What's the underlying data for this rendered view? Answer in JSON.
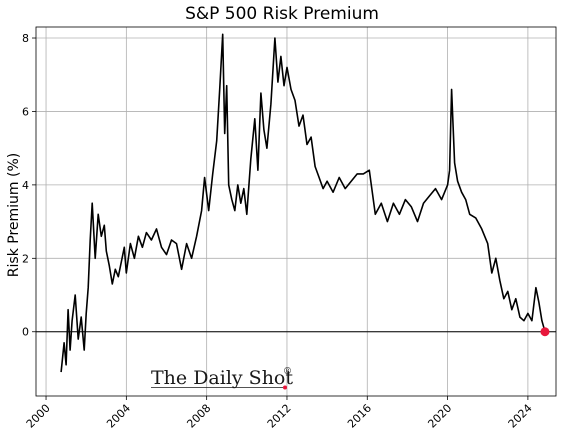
{
  "chart_data": {
    "type": "line",
    "title": "S&P 500 Risk Premium",
    "xlabel": "",
    "ylabel": "Risk Premium (%)",
    "xlim": [
      1999.5,
      2025.4
    ],
    "ylim": [
      -1.75,
      8.3
    ],
    "x_ticks": [
      2000,
      2004,
      2008,
      2012,
      2016,
      2020,
      2024
    ],
    "x_tick_labels": [
      "2000",
      "2004",
      "2008",
      "2012",
      "2016",
      "2020",
      "2024"
    ],
    "y_ticks": [
      0,
      2,
      4,
      6,
      8
    ],
    "y_tick_labels": [
      "0",
      "2",
      "4",
      "6",
      "8"
    ],
    "grid": true,
    "zero_line": 0,
    "line_color": "#000000",
    "marker_color": "#e8173c",
    "series": [
      {
        "x": [
          2000.75,
          2000.9,
          2001.0,
          2001.1,
          2001.2,
          2001.3,
          2001.45,
          2001.6,
          2001.75,
          2001.9,
          2002.0,
          2002.1,
          2002.2,
          2002.3,
          2002.45,
          2002.6,
          2002.75,
          2002.9,
          2003.0,
          2003.15,
          2003.3,
          2003.45,
          2003.6,
          2003.75,
          2003.9,
          2004.0,
          2004.2,
          2004.4,
          2004.6,
          2004.8,
          2005.0,
          2005.25,
          2005.5,
          2005.75,
          2006.0,
          2006.25,
          2006.5,
          2006.75,
          2007.0,
          2007.25,
          2007.5,
          2007.75,
          2007.9,
          2008.1,
          2008.3,
          2008.5,
          2008.65,
          2008.8,
          2008.9,
          2009.0,
          2009.1,
          2009.25,
          2009.4,
          2009.55,
          2009.7,
          2009.85,
          2010.0,
          2010.2,
          2010.4,
          2010.55,
          2010.7,
          2010.85,
          2011.0,
          2011.2,
          2011.4,
          2011.55,
          2011.7,
          2011.85,
          2012.0,
          2012.2,
          2012.4,
          2012.6,
          2012.8,
          2013.0,
          2013.2,
          2013.4,
          2013.6,
          2013.8,
          2014.0,
          2014.3,
          2014.6,
          2014.9,
          2015.2,
          2015.5,
          2015.8,
          2016.1,
          2016.4,
          2016.7,
          2017.0,
          2017.3,
          2017.6,
          2017.9,
          2018.2,
          2018.5,
          2018.8,
          2019.1,
          2019.4,
          2019.7,
          2020.0,
          2020.1,
          2020.2,
          2020.35,
          2020.5,
          2020.7,
          2020.9,
          2021.1,
          2021.4,
          2021.7,
          2022.0,
          2022.2,
          2022.4,
          2022.6,
          2022.8,
          2023.0,
          2023.2,
          2023.4,
          2023.6,
          2023.8,
          2024.0,
          2024.2,
          2024.4,
          2024.55,
          2024.7,
          2024.85
        ],
        "y": [
          -1.1,
          -0.3,
          -0.9,
          0.6,
          -0.5,
          0.3,
          1.0,
          -0.2,
          0.4,
          -0.5,
          0.5,
          1.2,
          2.5,
          3.5,
          2.0,
          3.2,
          2.6,
          2.9,
          2.2,
          1.8,
          1.3,
          1.7,
          1.5,
          1.9,
          2.3,
          1.6,
          2.4,
          2.0,
          2.6,
          2.3,
          2.7,
          2.5,
          2.8,
          2.3,
          2.1,
          2.5,
          2.4,
          1.7,
          2.4,
          2.0,
          2.6,
          3.3,
          4.2,
          3.3,
          4.3,
          5.2,
          6.6,
          8.1,
          5.4,
          6.7,
          4.0,
          3.6,
          3.3,
          4.0,
          3.5,
          3.9,
          3.2,
          4.7,
          5.8,
          4.4,
          6.5,
          5.5,
          5.0,
          6.2,
          8.0,
          6.8,
          7.5,
          6.7,
          7.2,
          6.6,
          6.3,
          5.6,
          5.9,
          5.1,
          5.3,
          4.5,
          4.2,
          3.9,
          4.1,
          3.8,
          4.2,
          3.9,
          4.1,
          4.3,
          4.3,
          4.4,
          3.2,
          3.5,
          3.0,
          3.5,
          3.2,
          3.6,
          3.4,
          3.0,
          3.5,
          3.7,
          3.9,
          3.6,
          4.0,
          4.4,
          6.6,
          4.6,
          4.1,
          3.8,
          3.6,
          3.2,
          3.1,
          2.8,
          2.4,
          1.6,
          2.0,
          1.4,
          0.9,
          1.1,
          0.6,
          0.9,
          0.4,
          0.3,
          0.5,
          0.3,
          1.2,
          0.8,
          0.3,
          0.0
        ]
      }
    ],
    "last_point": {
      "x": 2024.85,
      "y": 0.0
    }
  },
  "watermark": {
    "text": "The Daily Shot",
    "mark": "®"
  }
}
